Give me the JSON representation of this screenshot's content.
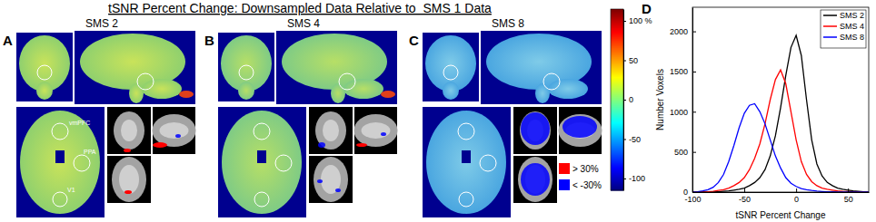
{
  "figure": {
    "title": "tSNR Percent Change: Downsampled Data Relative to  SMS 1 Data",
    "panels": [
      {
        "label": "A",
        "title": "SMS 2"
      },
      {
        "label": "B",
        "title": "SMS 4"
      },
      {
        "label": "C",
        "title": "SMS 8"
      },
      {
        "label": "D"
      }
    ],
    "region_labels": [
      "vmPFC",
      "PPA",
      "V1"
    ],
    "colorbar": {
      "range": [
        -115,
        115
      ],
      "ticks": [
        {
          "value": 100,
          "label": "100 %"
        },
        50,
        0,
        -50,
        -100
      ]
    },
    "threshold_legend": [
      {
        "label": "> 30%",
        "color": "#ff0000"
      },
      {
        "label": "< -30%",
        "color": "#0000ff"
      }
    ]
  },
  "chart_data": {
    "type": "line",
    "x": [
      -100,
      -95,
      -90,
      -85,
      -80,
      -75,
      -70,
      -65,
      -60,
      -55,
      -50,
      -45,
      -40,
      -35,
      -30,
      -25,
      -20,
      -15,
      -10,
      -5,
      0,
      5,
      10,
      15,
      20,
      25,
      30,
      35,
      40,
      45,
      50,
      55,
      60,
      65,
      70
    ],
    "series": [
      {
        "name": "SMS 2",
        "color": "#000000",
        "values": [
          0,
          0,
          0,
          0,
          0,
          5,
          10,
          15,
          25,
          35,
          50,
          80,
          120,
          180,
          280,
          450,
          700,
          1050,
          1450,
          1800,
          1950,
          1700,
          1150,
          650,
          350,
          200,
          120,
          80,
          50,
          35,
          25,
          15,
          10,
          5,
          5
        ]
      },
      {
        "name": "SMS 4",
        "color": "#ff0000",
        "values": [
          0,
          0,
          0,
          5,
          10,
          20,
          30,
          50,
          80,
          120,
          180,
          280,
          420,
          600,
          850,
          1150,
          1400,
          1520,
          1350,
          1000,
          650,
          380,
          220,
          130,
          80,
          50,
          35,
          25,
          15,
          10,
          8,
          5,
          3,
          2,
          0
        ]
      },
      {
        "name": "SMS 8",
        "color": "#0000ff",
        "values": [
          0,
          5,
          15,
          30,
          60,
          120,
          220,
          380,
          580,
          800,
          980,
          1080,
          1100,
          1000,
          850,
          650,
          450,
          300,
          180,
          110,
          70,
          45,
          30,
          20,
          12,
          8,
          5,
          3,
          2,
          1,
          0,
          0,
          0,
          0,
          0
        ]
      }
    ],
    "xlim": [
      -100,
      70
    ],
    "ylim": [
      0,
      2300
    ],
    "xticks": [
      -100,
      -50,
      0,
      50
    ],
    "yticks": [
      0,
      500,
      1000,
      1500,
      2000
    ],
    "x_label": "tSNR Percent Change",
    "y_label": "Number Voxels",
    "legend": "top-right",
    "grid": false
  }
}
